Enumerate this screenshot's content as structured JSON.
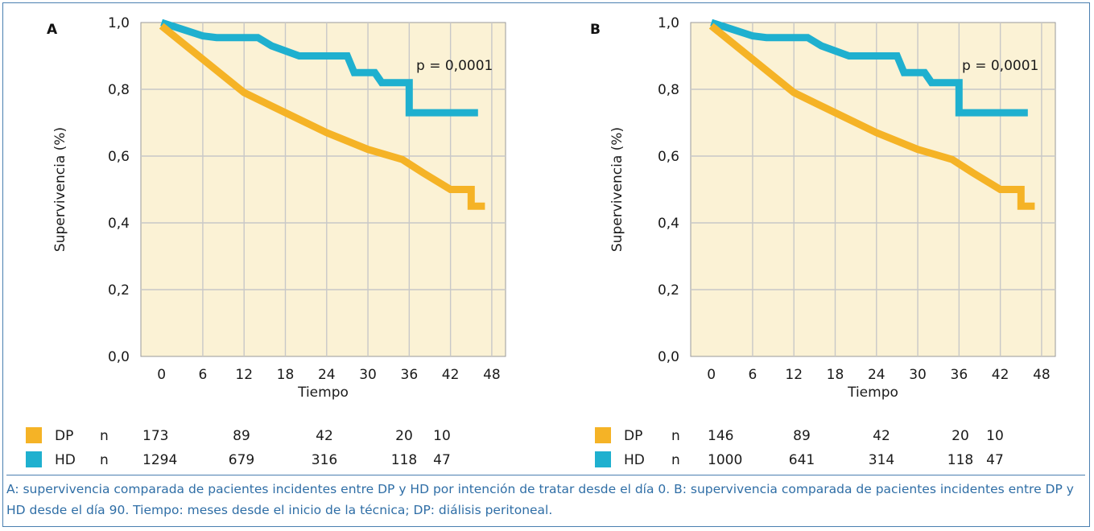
{
  "caption": "A: supervivencia comparada de pacientes incidentes entre DP y HD por intención de tratar desde el día 0. B: supervivencia comparada de pacientes incidentes entre DP y HD desde el día 90. Tiempo: meses desde el inicio de la técnica; DP: diálisis peritoneal.",
  "colors": {
    "DP": "#f5b326",
    "HD": "#1fb0cf"
  },
  "chart_data": [
    {
      "panel": "A",
      "type": "line",
      "xlabel": "Tiempo",
      "ylabel": "Supervivencia (%)",
      "xlim": [
        -3,
        50
      ],
      "ylim": [
        0,
        1
      ],
      "x_ticks": [
        0,
        6,
        12,
        18,
        24,
        30,
        36,
        42,
        48
      ],
      "y_ticks": [
        0.0,
        0.2,
        0.4,
        0.6,
        0.8,
        1.0
      ],
      "x_tick_labels": [
        "0",
        "6",
        "12",
        "18",
        "24",
        "30",
        "36",
        "42",
        "48"
      ],
      "y_tick_labels": [
        "0,0",
        "0,2",
        "0,4",
        "0,6",
        "0,8",
        "1,0"
      ],
      "annotation": "p = 0,0001",
      "series": [
        {
          "name": "HD",
          "color": "#1fb0cf",
          "points": [
            [
              0,
              1.0
            ],
            [
              3,
              0.98
            ],
            [
              6,
              0.96
            ],
            [
              8,
              0.955
            ],
            [
              14,
              0.955
            ],
            [
              16,
              0.93
            ],
            [
              20,
              0.9
            ],
            [
              27,
              0.9
            ],
            [
              28,
              0.85
            ],
            [
              31,
              0.85
            ],
            [
              32,
              0.82
            ],
            [
              36,
              0.82
            ],
            [
              36,
              0.73
            ],
            [
              46,
              0.73
            ]
          ]
        },
        {
          "name": "DP",
          "color": "#f5b326",
          "points": [
            [
              0,
              0.99
            ],
            [
              6,
              0.89
            ],
            [
              12,
              0.79
            ],
            [
              18,
              0.73
            ],
            [
              24,
              0.67
            ],
            [
              30,
              0.62
            ],
            [
              35,
              0.59
            ],
            [
              38,
              0.55
            ],
            [
              42,
              0.5
            ],
            [
              45,
              0.5
            ],
            [
              45,
              0.45
            ],
            [
              47,
              0.45
            ]
          ]
        }
      ],
      "risk_table": {
        "rows": [
          {
            "series": "DP",
            "prefix": "n",
            "values": [
              "173",
              "89",
              "42",
              "20",
              "10"
            ]
          },
          {
            "series": "HD",
            "prefix": "n",
            "values": [
              "1294",
              "679",
              "316",
              "118",
              "47"
            ]
          }
        ]
      }
    },
    {
      "panel": "B",
      "type": "line",
      "xlabel": "Tiempo",
      "ylabel": "Supervivencia (%)",
      "xlim": [
        -3,
        50
      ],
      "ylim": [
        0,
        1
      ],
      "x_ticks": [
        0,
        6,
        12,
        18,
        24,
        30,
        36,
        42,
        48
      ],
      "y_ticks": [
        0.0,
        0.2,
        0.4,
        0.6,
        0.8,
        1.0
      ],
      "x_tick_labels": [
        "0",
        "6",
        "12",
        "18",
        "24",
        "30",
        "36",
        "42",
        "48"
      ],
      "y_tick_labels": [
        "0,0",
        "0,2",
        "0,4",
        "0,6",
        "0,8",
        "1,0"
      ],
      "annotation": "p = 0,0001",
      "series": [
        {
          "name": "HD",
          "color": "#1fb0cf",
          "points": [
            [
              0,
              1.0
            ],
            [
              3,
              0.98
            ],
            [
              6,
              0.96
            ],
            [
              8,
              0.955
            ],
            [
              14,
              0.955
            ],
            [
              16,
              0.93
            ],
            [
              20,
              0.9
            ],
            [
              27,
              0.9
            ],
            [
              28,
              0.85
            ],
            [
              31,
              0.85
            ],
            [
              32,
              0.82
            ],
            [
              36,
              0.82
            ],
            [
              36,
              0.73
            ],
            [
              46,
              0.73
            ]
          ]
        },
        {
          "name": "DP",
          "color": "#f5b326",
          "points": [
            [
              0,
              0.99
            ],
            [
              6,
              0.89
            ],
            [
              12,
              0.79
            ],
            [
              18,
              0.73
            ],
            [
              24,
              0.67
            ],
            [
              30,
              0.62
            ],
            [
              35,
              0.59
            ],
            [
              38,
              0.55
            ],
            [
              42,
              0.5
            ],
            [
              45,
              0.5
            ],
            [
              45,
              0.45
            ],
            [
              47,
              0.45
            ]
          ]
        }
      ],
      "risk_table": {
        "rows": [
          {
            "series": "DP",
            "prefix": "n",
            "values": [
              "146",
              "89",
              "42",
              "20",
              "10"
            ]
          },
          {
            "series": "HD",
            "prefix": "n",
            "values": [
              "1000",
              "641",
              "314",
              "118",
              "47"
            ]
          }
        ]
      }
    }
  ]
}
